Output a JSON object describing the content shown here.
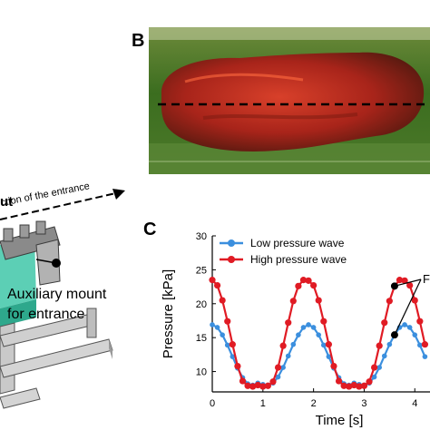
{
  "panels": {
    "b_letter": "B",
    "c_letter": "C"
  },
  "diagram": {
    "fragment_top": "ut",
    "direction_label": "ction of the entrance",
    "mount_line1": "Auxiliary  mount",
    "mount_line2": "for entrance"
  },
  "colors": {
    "low_wave": "#3b8fde",
    "high_wave": "#e01b24",
    "tank_green": "#2f6b1a",
    "organ_red": "#b0281a"
  },
  "chart_data": {
    "type": "line",
    "xlabel": "Time [s]",
    "ylabel": "Pressure [kPa]",
    "xlim": [
      0,
      4.3
    ],
    "ylim": [
      7,
      30
    ],
    "xticks": [
      "0",
      "1",
      "2",
      "3",
      "4"
    ],
    "yticks": [
      "10",
      "15",
      "20",
      "25",
      "30"
    ],
    "legend_position": "top",
    "annotation": "F",
    "series": [
      {
        "name": "Low pressure wave",
        "color": "#3b8fde",
        "x": [
          0.0,
          0.1,
          0.2,
          0.3,
          0.4,
          0.5,
          0.6,
          0.7,
          0.8,
          0.9,
          1.0,
          1.1,
          1.2,
          1.3,
          1.4,
          1.5,
          1.6,
          1.7,
          1.8,
          1.9,
          2.0,
          2.1,
          2.2,
          2.3,
          2.4,
          2.5,
          2.6,
          2.7,
          2.8,
          2.9,
          3.0,
          3.1,
          3.2,
          3.3,
          3.4,
          3.5,
          3.6,
          3.7,
          3.8,
          3.9,
          4.0,
          4.1,
          4.2
        ],
        "values": [
          16.9,
          16.5,
          15.4,
          13.9,
          12.2,
          10.5,
          9.1,
          8.2,
          8.0,
          8.3,
          8.1,
          8.0,
          8.3,
          9.2,
          10.6,
          12.3,
          14.0,
          15.4,
          16.5,
          16.9,
          16.5,
          15.4,
          13.9,
          12.2,
          10.5,
          9.1,
          8.2,
          8.0,
          8.3,
          8.1,
          8.0,
          8.3,
          9.2,
          10.6,
          12.3,
          14.0,
          15.4,
          16.5,
          16.9,
          16.5,
          15.4,
          13.9,
          12.2
        ]
      },
      {
        "name": "High pressure wave",
        "color": "#e01b24",
        "x": [
          0.0,
          0.1,
          0.2,
          0.3,
          0.4,
          0.5,
          0.6,
          0.7,
          0.8,
          0.9,
          1.0,
          1.1,
          1.2,
          1.3,
          1.4,
          1.5,
          1.6,
          1.7,
          1.8,
          1.9,
          2.0,
          2.1,
          2.2,
          2.3,
          2.4,
          2.5,
          2.6,
          2.7,
          2.8,
          2.9,
          3.0,
          3.1,
          3.2,
          3.3,
          3.4,
          3.5,
          3.6,
          3.7,
          3.8,
          3.9,
          4.0,
          4.1,
          4.2
        ],
        "values": [
          23.5,
          22.7,
          20.5,
          17.4,
          14.0,
          10.8,
          8.6,
          7.9,
          7.8,
          8.0,
          7.8,
          7.9,
          8.5,
          10.6,
          13.8,
          17.2,
          20.4,
          22.6,
          23.5,
          23.4,
          22.7,
          20.5,
          17.4,
          14.0,
          10.8,
          8.6,
          7.9,
          7.8,
          8.0,
          7.8,
          7.9,
          8.5,
          10.6,
          13.8,
          17.2,
          20.4,
          22.6,
          23.5,
          23.4,
          22.7,
          20.5,
          17.4,
          14.0
        ]
      }
    ]
  }
}
